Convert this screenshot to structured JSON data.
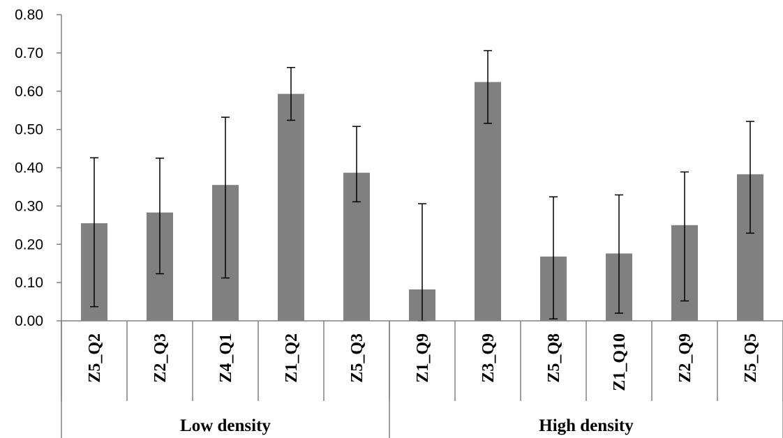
{
  "chart_data": {
    "type": "bar",
    "title": "",
    "xlabel": "",
    "ylabel": "",
    "ylim": [
      0,
      0.8
    ],
    "y_ticks": [
      "0.00",
      "0.10",
      "0.20",
      "0.30",
      "0.40",
      "0.50",
      "0.60",
      "0.70",
      "0.80"
    ],
    "grid": false,
    "legend": "none",
    "bar_color": "#808080",
    "groups": [
      {
        "label": "Low density",
        "categories": [
          "Z5_Q2",
          "Z2_Q3",
          "Z4_Q1",
          "Z1_Q2",
          "Z5_Q3"
        ]
      },
      {
        "label": "High density",
        "categories": [
          "Z1_Q9",
          "Z3_Q9",
          "Z5_Q8",
          "Z1_Q10",
          "Z2_Q9",
          "Z5_Q5"
        ]
      }
    ],
    "series": [
      {
        "values": [
          0.255,
          0.283,
          0.355,
          0.593,
          0.387,
          0.082,
          0.624,
          0.168,
          0.176,
          0.25,
          0.383
        ],
        "error_low": [
          0.037,
          0.123,
          0.112,
          0.524,
          0.311,
          0.0,
          0.516,
          0.005,
          0.02,
          0.052,
          0.229
        ],
        "error_high": [
          0.426,
          0.425,
          0.532,
          0.662,
          0.508,
          0.306,
          0.706,
          0.324,
          0.329,
          0.389,
          0.521
        ]
      }
    ]
  }
}
